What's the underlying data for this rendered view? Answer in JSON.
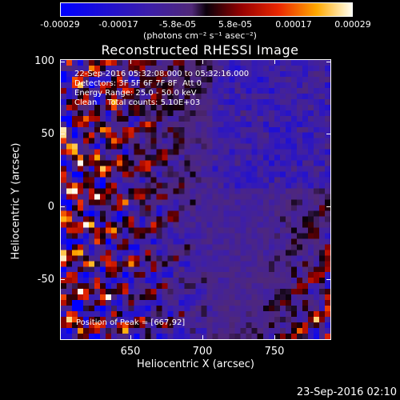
{
  "colorbar": {
    "ticks": [
      "-0.00029",
      "-0.00017",
      "-5.8e-05",
      "5.8e-05",
      "0.00017",
      "0.00029"
    ],
    "units": "(photons cm⁻² s⁻¹ asec⁻²)"
  },
  "title": "Reconstructed RHESSI Image",
  "info": {
    "line1": "22-Sep-2016 05:32:08.000 to 05:32:16.000",
    "line2": "Detectors: 3F 5F 6F 7F 8F  Att 0",
    "line3": "Energy Range: 25.0 - 50.0 keV",
    "line4": "Clean    Total counts: 5.10E+03"
  },
  "peak": "Position of Peak = [667,92]",
  "axes": {
    "xlabel": "Heliocentric X (arcsec)",
    "ylabel": "Heliocentric Y (arcsec)",
    "xticks": [
      "650",
      "700",
      "750"
    ],
    "yticks": [
      "100",
      "50",
      "0",
      "-50"
    ]
  },
  "timestamp": "23-Sep-2016 02:10"
}
